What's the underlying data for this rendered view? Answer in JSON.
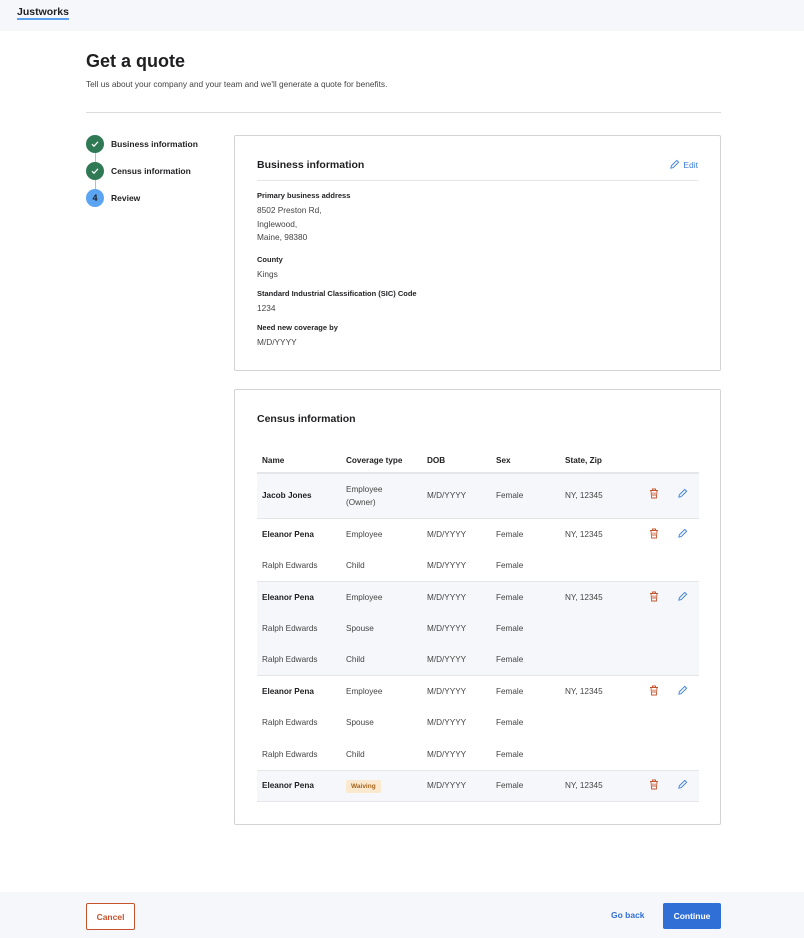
{
  "app": {
    "logo": "Justworks"
  },
  "page": {
    "title": "Get a quote",
    "subtitle": "Tell us about your company and your team and we'll generate a quote for benefits."
  },
  "steps": [
    {
      "label": "Business information",
      "status": "done"
    },
    {
      "label": "Census information",
      "status": "done"
    },
    {
      "label": "Review",
      "number": "4",
      "status": "current"
    }
  ],
  "business": {
    "title": "Business information",
    "edit_label": "Edit",
    "fields": [
      {
        "label": "Primary business address",
        "lines": [
          "8502 Preston Rd,",
          "Inglewood,",
          "Maine, 98380"
        ]
      },
      {
        "label": "County",
        "value": "Kings"
      },
      {
        "label": "Standard Industrial Classification (SIC) Code",
        "value": "1234"
      },
      {
        "label": "Need new coverage by",
        "value": "M/D/YYYY"
      }
    ]
  },
  "census": {
    "title": "Census information",
    "columns": [
      "Name",
      "Coverage type",
      "DOB",
      "Sex",
      "State, Zip"
    ],
    "rows": [
      {
        "name": "Jacob Jones",
        "coverage": "Employee (Owner)",
        "dob": "M/D/YYYY",
        "sex": "Female",
        "state_zip": "NY, 12345"
      },
      {
        "name": "Eleanor Pena",
        "coverage": "Employee",
        "dob": "M/D/YYYY",
        "sex": "Female",
        "state_zip": "NY, 12345"
      },
      {
        "name": "Ralph Edwards",
        "coverage": "Child",
        "dob": "M/D/YYYY",
        "sex": "Female"
      },
      {
        "name": "Eleanor Pena",
        "coverage": "Employee",
        "dob": "M/D/YYYY",
        "sex": "Female",
        "state_zip": "NY, 12345"
      },
      {
        "name": "Ralph Edwards",
        "coverage": "Spouse",
        "dob": "M/D/YYYY",
        "sex": "Female"
      },
      {
        "name": "Ralph Edwards",
        "coverage": "Child",
        "dob": "M/D/YYYY",
        "sex": "Female"
      },
      {
        "name": "Eleanor Pena",
        "coverage": "Employee",
        "dob": "M/D/YYYY",
        "sex": "Female",
        "state_zip": "NY, 12345"
      },
      {
        "name": "Ralph Edwards",
        "coverage": "Spouse",
        "dob": "M/D/YYYY",
        "sex": "Female"
      },
      {
        "name": "Ralph Edwards",
        "coverage": "Child",
        "dob": "M/D/YYYY",
        "sex": "Female"
      },
      {
        "name": "Eleanor Pena",
        "coverage": "Waiving",
        "dob": "M/D/YYYY",
        "sex": "Female",
        "state_zip": "NY, 12345"
      }
    ]
  },
  "footer": {
    "cancel": "Cancel",
    "go_back": "Go back",
    "continue": "Continue"
  },
  "colors": {
    "primary": "#2f6fd6",
    "success": "#2f7a55",
    "danger": "#c4532c",
    "current_step": "#5ba4f2"
  }
}
